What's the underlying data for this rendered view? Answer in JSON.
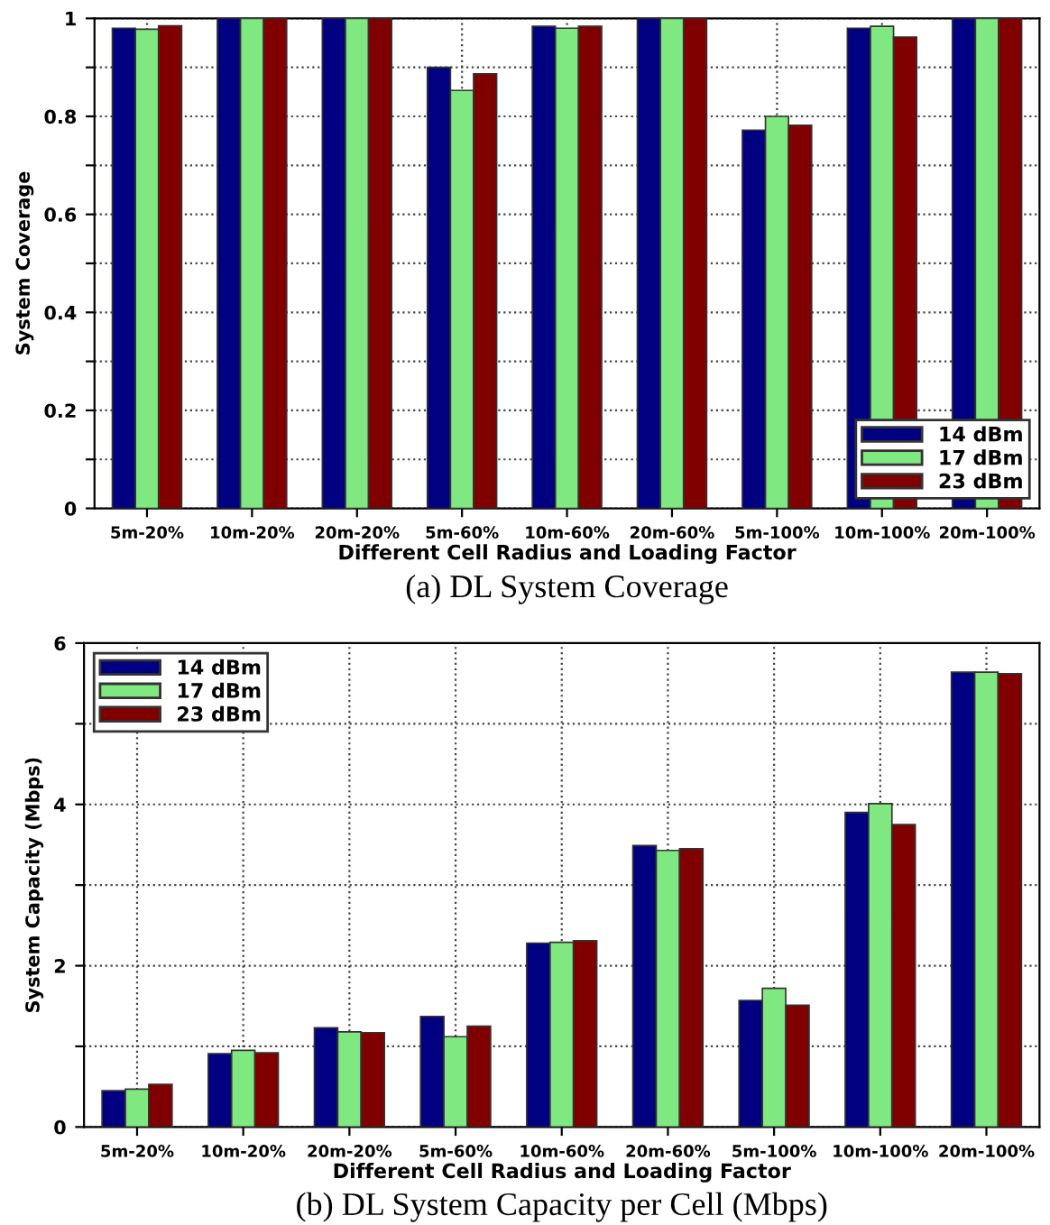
{
  "chart_data": [
    {
      "type": "bar",
      "categories": [
        "5m-20%",
        "10m-20%",
        "20m-20%",
        "5m-60%",
        "10m-60%",
        "20m-60%",
        "5m-100%",
        "10m-100%",
        "20m-100%"
      ],
      "series": [
        {
          "name": "14 dBm",
          "color": "#000080",
          "values": [
            0.98,
            1,
            1,
            0.9,
            0.984,
            1,
            0.772,
            0.98,
            1
          ]
        },
        {
          "name": "17 dBm",
          "color": "#80e880",
          "values": [
            0.978,
            1,
            1,
            0.853,
            0.98,
            1,
            0.8,
            0.984,
            1
          ]
        },
        {
          "name": "23 dBm",
          "color": "#800000",
          "values": [
            0.985,
            1,
            1,
            0.887,
            0.984,
            1,
            0.782,
            0.962,
            1
          ]
        }
      ],
      "xlabel": "Different Cell Radius and Loading Factor",
      "ylabel": "System Coverage",
      "ylim": [
        0,
        1
      ],
      "yticks": [
        0,
        {
          "value": 0.1,
          "label": null
        },
        0.2,
        {
          "value": 0.3,
          "label": null
        },
        0.4,
        {
          "value": 0.5,
          "label": null
        },
        0.6,
        {
          "value": 0.7,
          "label": null
        },
        0.8,
        {
          "value": 0.9,
          "label": null
        },
        1
      ],
      "grid": true,
      "legend": "bottom right",
      "annotations": [
        "(a) DL System Coverage"
      ]
    },
    {
      "type": "bar",
      "categories": [
        "5m-20%",
        "10m-20%",
        "20m-20%",
        "5m-60%",
        "10m-60%",
        "20m-60%",
        "5m-100%",
        "10m-100%",
        "20m-100%"
      ],
      "series": [
        {
          "name": "14 dBm",
          "color": "#000080",
          "values": [
            0.45,
            0.91,
            1.23,
            1.37,
            2.28,
            3.49,
            1.57,
            3.9,
            5.64
          ]
        },
        {
          "name": "17 dBm",
          "color": "#80e880",
          "values": [
            0.47,
            0.95,
            1.18,
            1.12,
            2.29,
            3.43,
            1.72,
            4.01,
            5.64
          ]
        },
        {
          "name": "23 dBm",
          "color": "#800000",
          "values": [
            0.53,
            0.92,
            1.17,
            1.25,
            2.31,
            3.45,
            1.51,
            3.75,
            5.62
          ]
        }
      ],
      "xlabel": "Different Cell Radius and Loading Factor",
      "ylabel": "System Capacity (Mbps)",
      "ylim": [
        0,
        6
      ],
      "yticks": [
        0,
        {
          "value": 1,
          "label": null
        },
        2,
        {
          "value": 3,
          "label": null
        },
        4,
        {
          "value": 5,
          "label": null
        },
        6
      ],
      "grid": true,
      "legend": "top left",
      "annotations": [
        "(b) DL System Capacity per Cell (Mbps)"
      ]
    }
  ]
}
